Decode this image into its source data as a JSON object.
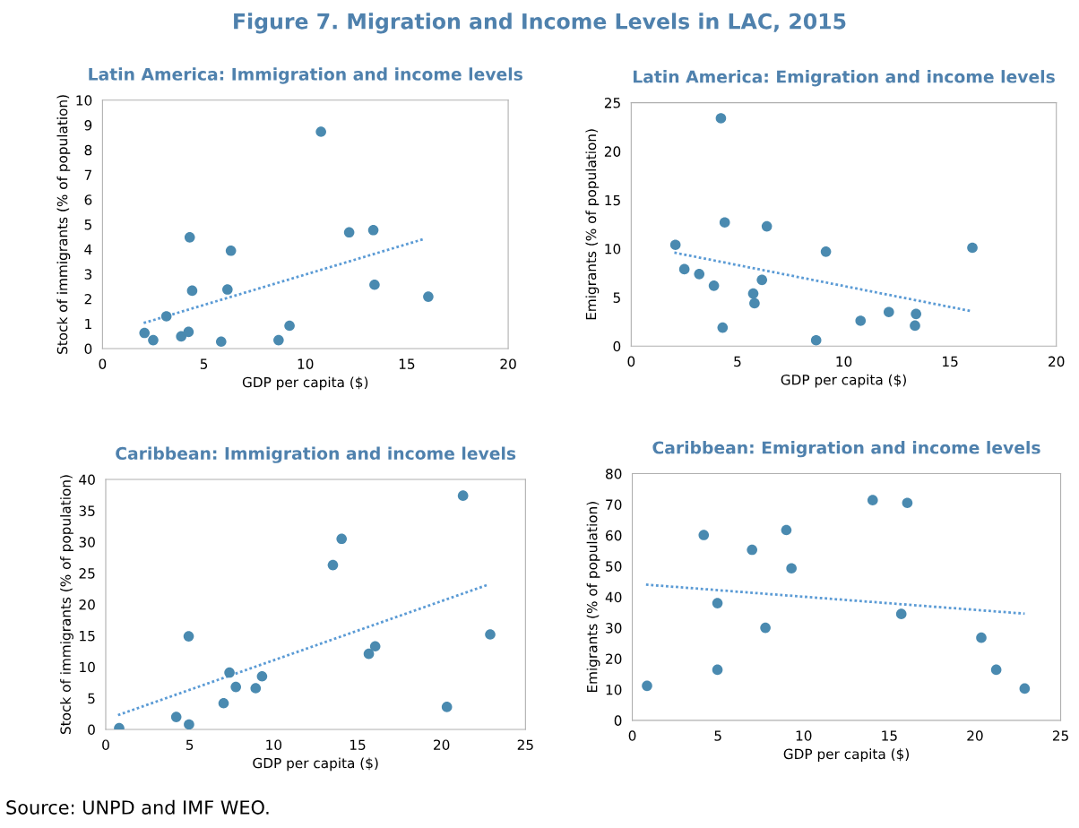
{
  "chart_data": [
    {
      "type": "scatter",
      "title": "Latin America: Immigration and income levels",
      "xlabel": "GDP per capita ($)",
      "ylabel": "Stock of immigrants (% of population)",
      "annotations": [
        "Figure 7. Migration and Income Levels in LAC, 2015"
      ],
      "xlim": [
        0,
        20
      ],
      "xticks": [
        0,
        5,
        10,
        15,
        20
      ],
      "ylim": [
        0,
        10
      ],
      "yticks": [
        0,
        1,
        2,
        3,
        4,
        5,
        6,
        7,
        8,
        9,
        10
      ],
      "grid": false,
      "marker": "circle",
      "series": [
        {
          "color": "#4a8ab0",
          "x": [
            2.07,
            2.5,
            3.15,
            3.88,
            4.24,
            4.3,
            4.42,
            5.7,
            5.85,
            6.16,
            6.33,
            8.68,
            9.22,
            10.77,
            12.16,
            13.35,
            13.41,
            16.06
          ],
          "values": [
            0.63,
            0.34,
            1.3,
            0.49,
            0.67,
            4.48,
            2.33,
            null,
            0.28,
            2.38,
            3.94,
            0.34,
            0.92,
            8.73,
            4.68,
            4.77,
            2.57,
            2.09
          ]
        },
        {
          "type": "line",
          "color": "#5b9bd5",
          "line_style": "dotted",
          "marker": "none",
          "x": [
            2.03,
            15.88
          ],
          "values": [
            1.03,
            4.42
          ]
        }
      ]
    },
    {
      "type": "scatter",
      "title": "Latin America: Emigration and income levels",
      "xlabel": "GDP per capita ($)",
      "ylabel": "Emigrants (% of population)",
      "xlim": [
        0,
        20
      ],
      "xticks": [
        0,
        5,
        10,
        15,
        20
      ],
      "ylim": [
        0,
        25
      ],
      "yticks": [
        0,
        5,
        10,
        15,
        20,
        25
      ],
      "grid": false,
      "marker": "circle",
      "series": [
        {
          "color": "#4a8ab0",
          "x": [
            2.08,
            2.5,
            3.2,
            3.89,
            4.22,
            4.3,
            4.4,
            5.74,
            5.8,
            6.15,
            6.38,
            8.7,
            9.16,
            10.79,
            12.12,
            13.35,
            13.4,
            16.05
          ],
          "values": [
            10.4,
            7.9,
            7.4,
            6.2,
            23.4,
            1.9,
            12.7,
            5.4,
            4.4,
            6.8,
            12.3,
            0.6,
            9.7,
            2.6,
            3.5,
            2.1,
            3.3,
            10.1
          ]
        },
        {
          "type": "line",
          "color": "#5b9bd5",
          "line_style": "dotted",
          "marker": "none",
          "x": [
            2.03,
            15.98
          ],
          "values": [
            9.6,
            3.6
          ]
        }
      ]
    },
    {
      "type": "scatter",
      "title": "Caribbean: Immigration and income levels",
      "xlabel": "GDP per capita ($)",
      "ylabel": "Stock of immigrants (% of population)",
      "xlim": [
        0,
        25
      ],
      "xticks": [
        0,
        5,
        10,
        15,
        20,
        25
      ],
      "ylim": [
        0,
        40
      ],
      "yticks": [
        0,
        5,
        10,
        15,
        20,
        25,
        30,
        35,
        40
      ],
      "grid": false,
      "marker": "circle",
      "series": [
        {
          "color": "#4a8ab0",
          "x": [
            0.8,
            4.2,
            4.94,
            4.96,
            7.02,
            7.37,
            7.75,
            8.93,
            9.31,
            13.53,
            14.05,
            15.67,
            16.05,
            20.32,
            21.28,
            22.9
          ],
          "values": [
            0.2,
            2.0,
            14.9,
            0.8,
            4.2,
            9.1,
            6.8,
            6.6,
            8.5,
            26.3,
            30.5,
            12.1,
            13.3,
            3.6,
            37.4,
            15.2
          ]
        },
        {
          "type": "line",
          "color": "#5b9bd5",
          "line_style": "dotted",
          "marker": "none",
          "x": [
            0.73,
            22.71
          ],
          "values": [
            2.3,
            23.1
          ]
        }
      ]
    },
    {
      "type": "scatter",
      "title": "Caribbean: Emigration and income levels",
      "xlabel": "GDP per capita ($)",
      "ylabel": "Emigrants (% of population)",
      "annotations": [
        "Source: UNPD and IMF WEO."
      ],
      "xlim": [
        0,
        25
      ],
      "xticks": [
        0,
        5,
        10,
        15,
        20,
        25
      ],
      "ylim": [
        0,
        80
      ],
      "yticks": [
        0,
        10,
        20,
        30,
        40,
        50,
        60,
        70,
        80
      ],
      "grid": false,
      "marker": "circle",
      "series": [
        {
          "color": "#4a8ab0",
          "x": [
            0.86,
            4.17,
            4.97,
            4.97,
            6.99,
            7.77,
            8.99,
            9.29,
            14.03,
            15.7,
            16.05,
            20.37,
            21.24,
            22.9
          ],
          "values": [
            11.2,
            60.1,
            38.0,
            16.4,
            55.3,
            30.0,
            61.7,
            49.3,
            71.4,
            34.5,
            70.5,
            26.8,
            16.4,
            10.3
          ]
        },
        {
          "type": "line",
          "color": "#5b9bd5",
          "line_style": "dotted",
          "marker": "none",
          "x": [
            0.8,
            22.9
          ],
          "values": [
            44.0,
            34.6
          ]
        }
      ]
    }
  ]
}
